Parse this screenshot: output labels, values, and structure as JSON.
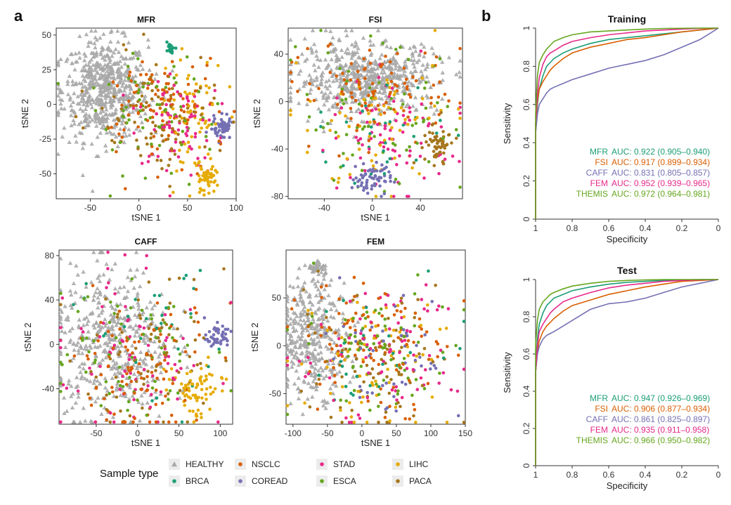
{
  "panel_labels": {
    "a": "a",
    "b": "b"
  },
  "colors": {
    "HEALTHY": "#a8a8a8",
    "BRCA": "#1b9e77",
    "NSCLC": "#d95f02",
    "COREAD": "#7570b3",
    "STAD": "#e7298a",
    "ESCA": "#66a61e",
    "LIHC": "#e6ab02",
    "PACA": "#a6761d",
    "MFR": "#1b9e77",
    "FSI": "#d95f02",
    "CAFF": "#7570b3",
    "FEM": "#e7298a",
    "THEMIS": "#66a61e"
  },
  "legend": {
    "title": "Sample type",
    "items": [
      {
        "label": "HEALTHY",
        "shape": "triangle"
      },
      {
        "label": "BRCA",
        "shape": "circle"
      },
      {
        "label": "NSCLC",
        "shape": "circle"
      },
      {
        "label": "COREAD",
        "shape": "circle"
      },
      {
        "label": "STAD",
        "shape": "circle"
      },
      {
        "label": "ESCA",
        "shape": "circle"
      },
      {
        "label": "LIHC",
        "shape": "circle"
      },
      {
        "label": "PACA",
        "shape": "circle"
      }
    ]
  },
  "chart_data": [
    {
      "type": "scatter",
      "title": "MFR",
      "xlabel": "tSNE 1",
      "ylabel": "tSNE 2",
      "xlim": [
        -85,
        100
      ],
      "ylim": [
        -68,
        55
      ],
      "xticks": [
        -50,
        0,
        50,
        100
      ],
      "yticks": [
        -50,
        -25,
        0,
        25,
        50
      ],
      "clusters": [
        {
          "group": "HEALTHY",
          "cx": -35,
          "cy": 10,
          "sx": 22,
          "sy": 18,
          "n": 600
        },
        {
          "group": "NSCLC",
          "cx": 20,
          "cy": 0,
          "sx": 30,
          "sy": 18,
          "n": 100
        },
        {
          "group": "STAD",
          "cx": 40,
          "cy": -15,
          "sx": 25,
          "sy": 18,
          "n": 80
        },
        {
          "group": "LIHC",
          "cx": 55,
          "cy": -10,
          "sx": 18,
          "sy": 22,
          "n": 70
        },
        {
          "group": "LIHC",
          "cx": 70,
          "cy": -52,
          "sx": 5,
          "sy": 6,
          "n": 50
        },
        {
          "group": "COREAD",
          "cx": 85,
          "cy": -17,
          "sx": 5,
          "sy": 4,
          "n": 60
        },
        {
          "group": "BRCA",
          "cx": 33,
          "cy": 40,
          "sx": 2,
          "sy": 2,
          "n": 20
        },
        {
          "group": "ESCA",
          "cx": 15,
          "cy": -5,
          "sx": 35,
          "sy": 22,
          "n": 70
        },
        {
          "group": "PACA",
          "cx": 25,
          "cy": -10,
          "sx": 35,
          "sy": 22,
          "n": 80
        }
      ]
    },
    {
      "type": "scatter",
      "title": "FSI",
      "xlabel": "tSNE 1",
      "ylabel": "tSNE 2",
      "xlim": [
        -70,
        75
      ],
      "ylim": [
        -82,
        62
      ],
      "xticks": [
        -40,
        0,
        40
      ],
      "yticks": [
        -80,
        -40,
        0,
        40
      ],
      "clusters": [
        {
          "group": "HEALTHY",
          "cx": -5,
          "cy": 20,
          "sx": 30,
          "sy": 15,
          "n": 600
        },
        {
          "group": "NSCLC",
          "cx": 0,
          "cy": 10,
          "sx": 35,
          "sy": 20,
          "n": 100
        },
        {
          "group": "COREAD",
          "cx": 0,
          "cy": -65,
          "sx": 8,
          "sy": 8,
          "n": 60
        },
        {
          "group": "STAD",
          "cx": 15,
          "cy": -30,
          "sx": 25,
          "sy": 25,
          "n": 80
        },
        {
          "group": "LIHC",
          "cx": 10,
          "cy": -20,
          "sx": 35,
          "sy": 30,
          "n": 70
        },
        {
          "group": "PACA",
          "cx": 55,
          "cy": -38,
          "sx": 6,
          "sy": 8,
          "n": 60
        },
        {
          "group": "ESCA",
          "cx": 5,
          "cy": -10,
          "sx": 35,
          "sy": 30,
          "n": 70
        },
        {
          "group": "BRCA",
          "cx": 0,
          "cy": -30,
          "sx": 35,
          "sy": 25,
          "n": 30
        }
      ]
    },
    {
      "type": "scatter",
      "title": "CAFF",
      "xlabel": "tSNE 1",
      "ylabel": "tSNE 2",
      "xlim": [
        -95,
        115
      ],
      "ylim": [
        -72,
        85
      ],
      "xticks": [
        -50,
        0,
        50,
        100
      ],
      "yticks": [
        -40,
        0,
        40,
        80
      ],
      "clusters": [
        {
          "group": "HEALTHY",
          "cx": -30,
          "cy": 0,
          "sx": 35,
          "sy": 35,
          "n": 450
        },
        {
          "group": "NSCLC",
          "cx": 10,
          "cy": -20,
          "sx": 45,
          "sy": 30,
          "n": 100
        },
        {
          "group": "COREAD",
          "cx": 95,
          "cy": 8,
          "sx": 6,
          "sy": 5,
          "n": 50
        },
        {
          "group": "STAD",
          "cx": 0,
          "cy": -10,
          "sx": 50,
          "sy": 35,
          "n": 80
        },
        {
          "group": "LIHC",
          "cx": 70,
          "cy": -40,
          "sx": 15,
          "sy": 12,
          "n": 70
        },
        {
          "group": "ESCA",
          "cx": 0,
          "cy": -10,
          "sx": 50,
          "sy": 35,
          "n": 70
        },
        {
          "group": "PACA",
          "cx": 10,
          "cy": -10,
          "sx": 50,
          "sy": 35,
          "n": 80
        },
        {
          "group": "BRCA",
          "cx": 0,
          "cy": 0,
          "sx": 50,
          "sy": 35,
          "n": 30
        }
      ]
    },
    {
      "type": "scatter",
      "title": "FEM",
      "xlabel": "tSNE 1",
      "ylabel": "tSNE 2",
      "xlim": [
        -110,
        150
      ],
      "ylim": [
        -82,
        100
      ],
      "xticks": [
        -100,
        -50,
        0,
        50,
        100,
        150
      ],
      "yticks": [
        -50,
        0,
        50
      ],
      "clusters": [
        {
          "group": "HEALTHY",
          "cx": -70,
          "cy": 10,
          "sx": 25,
          "sy": 30,
          "n": 350
        },
        {
          "group": "HEALTHY",
          "cx": -65,
          "cy": 82,
          "sx": 6,
          "sy": 5,
          "n": 40
        },
        {
          "group": "NSCLC",
          "cx": 10,
          "cy": 0,
          "sx": 55,
          "sy": 35,
          "n": 100
        },
        {
          "group": "COREAD",
          "cx": 30,
          "cy": -20,
          "sx": 50,
          "sy": 30,
          "n": 50
        },
        {
          "group": "STAD",
          "cx": 20,
          "cy": -10,
          "sx": 55,
          "sy": 35,
          "n": 80
        },
        {
          "group": "LIHC",
          "cx": 20,
          "cy": -10,
          "sx": 55,
          "sy": 35,
          "n": 70
        },
        {
          "group": "ESCA",
          "cx": 20,
          "cy": -10,
          "sx": 55,
          "sy": 35,
          "n": 70
        },
        {
          "group": "PACA",
          "cx": 20,
          "cy": -10,
          "sx": 55,
          "sy": 35,
          "n": 80
        },
        {
          "group": "BRCA",
          "cx": 20,
          "cy": -10,
          "sx": 55,
          "sy": 35,
          "n": 30
        }
      ]
    },
    {
      "type": "line",
      "title": "Training",
      "xlabel": "Specificity",
      "ylabel": "Sensitivity",
      "xlim": [
        1.0,
        0.0
      ],
      "ylim": [
        0.0,
        1.0
      ],
      "xticks": [
        1.0,
        0.8,
        0.6,
        0.4,
        0.2,
        0.0
      ],
      "yticks": [
        0.0,
        0.2,
        0.4,
        0.6,
        0.8,
        1.0
      ],
      "series": [
        {
          "name": "MFR",
          "auc_text": "AUC: 0.922 (0.905–0.940)",
          "x": [
            1.0,
            1.0,
            0.99,
            0.98,
            0.96,
            0.94,
            0.92,
            0.9,
            0.85,
            0.8,
            0.7,
            0.6,
            0.5,
            0.4,
            0.3,
            0.2,
            0.1,
            0.0
          ],
          "y": [
            0.0,
            0.45,
            0.6,
            0.68,
            0.75,
            0.8,
            0.82,
            0.84,
            0.87,
            0.89,
            0.92,
            0.94,
            0.95,
            0.96,
            0.97,
            0.98,
            0.99,
            1.0
          ]
        },
        {
          "name": "FSI",
          "auc_text": "AUC: 0.917 (0.899–0.934)",
          "x": [
            1.0,
            1.0,
            0.99,
            0.98,
            0.96,
            0.94,
            0.92,
            0.9,
            0.85,
            0.8,
            0.7,
            0.6,
            0.5,
            0.4,
            0.3,
            0.2,
            0.1,
            0.0
          ],
          "y": [
            0.0,
            0.5,
            0.62,
            0.68,
            0.72,
            0.75,
            0.78,
            0.8,
            0.84,
            0.87,
            0.9,
            0.92,
            0.94,
            0.95,
            0.965,
            0.98,
            0.99,
            1.0
          ]
        },
        {
          "name": "CAFF",
          "auc_text": "AUC: 0.831 (0.805–0.857)",
          "x": [
            1.0,
            1.0,
            0.99,
            0.98,
            0.96,
            0.94,
            0.92,
            0.9,
            0.85,
            0.8,
            0.7,
            0.6,
            0.5,
            0.4,
            0.3,
            0.2,
            0.1,
            0.05,
            0.0
          ],
          "y": [
            0.0,
            0.45,
            0.55,
            0.6,
            0.63,
            0.66,
            0.68,
            0.69,
            0.71,
            0.73,
            0.76,
            0.79,
            0.81,
            0.83,
            0.86,
            0.9,
            0.94,
            0.97,
            1.0
          ]
        },
        {
          "name": "FEM",
          "auc_text": "AUC: 0.952 (0.939–0.965)",
          "x": [
            1.0,
            1.0,
            0.99,
            0.98,
            0.96,
            0.94,
            0.92,
            0.9,
            0.85,
            0.8,
            0.7,
            0.6,
            0.5,
            0.4,
            0.3,
            0.2,
            0.1,
            0.0
          ],
          "y": [
            0.0,
            0.5,
            0.65,
            0.74,
            0.81,
            0.85,
            0.87,
            0.88,
            0.91,
            0.93,
            0.95,
            0.965,
            0.975,
            0.985,
            0.99,
            0.995,
            0.998,
            1.0
          ]
        },
        {
          "name": "THEMIS",
          "auc_text": "AUC: 0.972 (0.964–0.981)",
          "x": [
            1.0,
            1.0,
            0.99,
            0.98,
            0.96,
            0.94,
            0.92,
            0.9,
            0.85,
            0.8,
            0.7,
            0.6,
            0.5,
            0.4,
            0.3,
            0.2,
            0.1,
            0.0
          ],
          "y": [
            0.0,
            0.55,
            0.75,
            0.82,
            0.86,
            0.89,
            0.91,
            0.93,
            0.95,
            0.965,
            0.98,
            0.985,
            0.99,
            0.995,
            0.998,
            0.999,
            1.0,
            1.0
          ]
        }
      ]
    },
    {
      "type": "line",
      "title": "Test",
      "xlabel": "Specificity",
      "ylabel": "Sensitivity",
      "xlim": [
        1.0,
        0.0
      ],
      "ylim": [
        0.0,
        1.0
      ],
      "xticks": [
        1.0,
        0.8,
        0.6,
        0.4,
        0.2,
        0.0
      ],
      "yticks": [
        0.0,
        0.2,
        0.4,
        0.6,
        0.8,
        1.0
      ],
      "series": [
        {
          "name": "MFR",
          "auc_text": "AUC: 0.947 (0.926–0.969)",
          "x": [
            1.0,
            1.0,
            0.99,
            0.98,
            0.96,
            0.94,
            0.92,
            0.9,
            0.85,
            0.8,
            0.7,
            0.6,
            0.5,
            0.4,
            0.3,
            0.2,
            0.1,
            0.0
          ],
          "y": [
            0.0,
            0.55,
            0.68,
            0.76,
            0.82,
            0.86,
            0.88,
            0.9,
            0.92,
            0.94,
            0.96,
            0.975,
            0.985,
            0.99,
            0.995,
            0.998,
            1.0,
            1.0
          ]
        },
        {
          "name": "FSI",
          "auc_text": "AUC: 0.906 (0.877–0.934)",
          "x": [
            1.0,
            1.0,
            0.99,
            0.98,
            0.96,
            0.94,
            0.92,
            0.9,
            0.85,
            0.8,
            0.7,
            0.6,
            0.5,
            0.4,
            0.3,
            0.2,
            0.1,
            0.0
          ],
          "y": [
            0.0,
            0.5,
            0.62,
            0.67,
            0.72,
            0.75,
            0.77,
            0.79,
            0.83,
            0.86,
            0.89,
            0.92,
            0.94,
            0.96,
            0.975,
            0.99,
            0.995,
            1.0
          ]
        },
        {
          "name": "CAFF",
          "auc_text": "AUC: 0.861 (0.825–0.897)",
          "x": [
            1.0,
            1.0,
            0.99,
            0.98,
            0.96,
            0.94,
            0.92,
            0.9,
            0.85,
            0.8,
            0.7,
            0.6,
            0.5,
            0.4,
            0.3,
            0.2,
            0.1,
            0.05,
            0.0
          ],
          "y": [
            0.0,
            0.5,
            0.6,
            0.64,
            0.68,
            0.7,
            0.71,
            0.72,
            0.75,
            0.78,
            0.84,
            0.87,
            0.88,
            0.9,
            0.93,
            0.96,
            0.98,
            0.99,
            1.0
          ]
        },
        {
          "name": "FEM",
          "auc_text": "AUC: 0.935 (0.911–0.958)",
          "x": [
            1.0,
            1.0,
            0.99,
            0.98,
            0.96,
            0.94,
            0.92,
            0.9,
            0.85,
            0.8,
            0.7,
            0.6,
            0.5,
            0.4,
            0.3,
            0.2,
            0.1,
            0.0
          ],
          "y": [
            0.0,
            0.5,
            0.65,
            0.72,
            0.76,
            0.79,
            0.82,
            0.84,
            0.88,
            0.9,
            0.93,
            0.955,
            0.97,
            0.98,
            0.99,
            0.995,
            0.998,
            1.0
          ]
        },
        {
          "name": "THEMIS",
          "auc_text": "AUC: 0.966 (0.950–0.982)",
          "x": [
            1.0,
            1.0,
            0.99,
            0.98,
            0.96,
            0.94,
            0.92,
            0.9,
            0.85,
            0.8,
            0.7,
            0.6,
            0.5,
            0.4,
            0.3,
            0.2,
            0.1,
            0.0
          ],
          "y": [
            0.0,
            0.65,
            0.78,
            0.84,
            0.88,
            0.9,
            0.92,
            0.93,
            0.95,
            0.965,
            0.98,
            0.99,
            0.995,
            0.998,
            1.0,
            1.0,
            1.0,
            1.0
          ]
        }
      ]
    }
  ]
}
